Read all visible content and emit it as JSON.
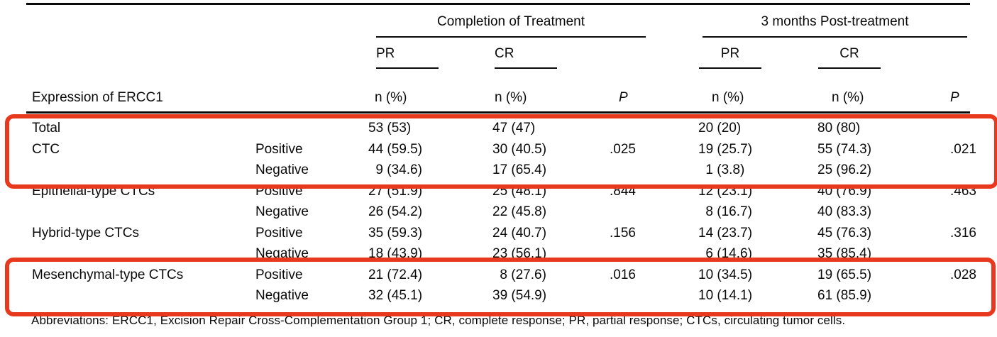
{
  "table": {
    "header": {
      "row_label": "Expression of ERCC1",
      "group1": "Completion of Treatment",
      "group2": "3 months Post-treatment",
      "pr": "PR",
      "cr": "CR",
      "n_pct": "n (%)",
      "p": "P"
    },
    "rows": [
      {
        "label": "Total",
        "status": "",
        "cells": [
          "53 (53)",
          "47 (47)",
          "",
          "20 (20)",
          "80 (80)",
          ""
        ]
      },
      {
        "label": "CTC",
        "status": "Positive",
        "cells": [
          "44 (59.5)",
          "30 (40.5)",
          ".025",
          "19 (25.7)",
          "55 (74.3)",
          ".021"
        ]
      },
      {
        "label": "",
        "status": "Negative",
        "cells": [
          "9 (34.6)",
          "17 (65.4)",
          "",
          "1 (3.8)",
          "25 (96.2)",
          ""
        ]
      },
      {
        "label": "Epithelial-type CTCs",
        "status": "Positive",
        "cells": [
          "27 (51.9)",
          "25 (48.1)",
          ".844",
          "12 (23.1)",
          "40 (76.9)",
          ".463"
        ]
      },
      {
        "label": "",
        "status": "Negative",
        "cells": [
          "26 (54.2)",
          "22 (45.8)",
          "",
          "8 (16.7)",
          "40 (83.3)",
          ""
        ]
      },
      {
        "label": "Hybrid-type CTCs",
        "status": "Positive",
        "cells": [
          "35 (59.3)",
          "24 (40.7)",
          ".156",
          "14 (23.7)",
          "45 (76.3)",
          ".316"
        ]
      },
      {
        "label": "",
        "status": "Negative",
        "cells": [
          "18 (43.9)",
          "23 (56.1)",
          "",
          "6 (14.6)",
          "35 (85.4)",
          ""
        ]
      },
      {
        "label": "Mesenchymal-type CTCs",
        "status": "Positive",
        "cells": [
          "21 (72.4)",
          "8 (27.6)",
          ".016",
          "10 (34.5)",
          "19 (65.5)",
          ".028"
        ]
      },
      {
        "label": "",
        "status": "Negative",
        "cells": [
          "32 (45.1)",
          "39 (54.9)",
          "",
          "10 (14.1)",
          "61 (85.9)",
          ""
        ]
      }
    ],
    "footnote": "Abbreviations: ERCC1, Excision Repair Cross-Complementation Group 1; CR, complete response; PR, partial response; CTCs, circulating tumor cells."
  },
  "annotations": {
    "highlight_color": "#e8391f",
    "highlights": [
      {
        "name": "highlight-total-ctc-rows",
        "covers": "Total, CTC Positive, CTC Negative"
      },
      {
        "name": "highlight-mesenchymal-rows",
        "covers": "Mesenchymal-type CTCs Positive, Negative"
      }
    ]
  }
}
